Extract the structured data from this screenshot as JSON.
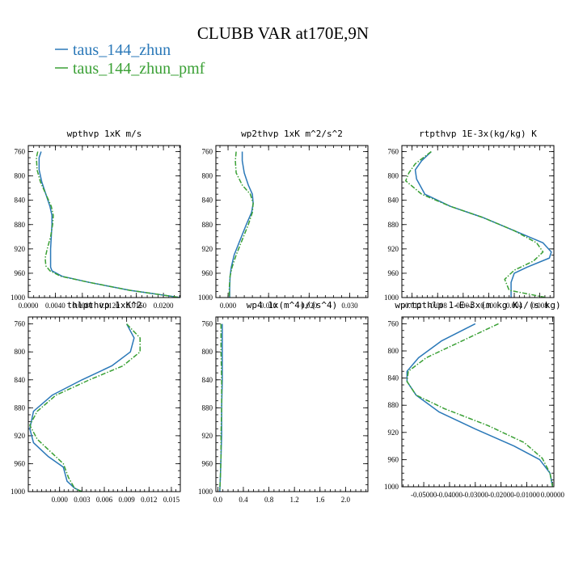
{
  "title": "CLUBB VAR at170E,9N",
  "colors": {
    "series_1": "#2a78b8",
    "series_2": "#3aa035"
  },
  "legend": [
    {
      "label": "taus_144_zhun",
      "color": "#2a78b8",
      "dash": "solid"
    },
    {
      "label": "taus_144_zhun_pmf",
      "color": "#3aa035",
      "dash": "dashdot"
    }
  ],
  "chart_data": [
    {
      "type": "line",
      "title": "wpthvp  1xK m/s",
      "xlim": [
        0.0,
        0.0225
      ],
      "ylim": [
        1000,
        750
      ],
      "xticks": [
        0.0,
        0.004,
        0.008,
        0.012,
        0.016,
        0.02
      ],
      "xtick_labels": [
        "0.0000",
        "0.0040",
        "0.0080",
        "0.0120",
        "0.0160",
        "0.0200"
      ],
      "yticks": [
        760,
        800,
        840,
        880,
        920,
        960,
        1000
      ],
      "ytick_labels": [
        "760",
        "800",
        "840",
        "880",
        "920",
        "960",
        "1000"
      ],
      "series": [
        {
          "name": "taus_144_zhun",
          "x": [
            0.0019,
            0.0016,
            0.0016,
            0.002,
            0.0026,
            0.0032,
            0.0035,
            0.0035,
            0.0034,
            0.0033,
            0.0033,
            0.0033,
            0.0035,
            0.005,
            0.009,
            0.015,
            0.0225
          ],
          "y": [
            760,
            770,
            790,
            810,
            830,
            850,
            865,
            880,
            900,
            920,
            940,
            950,
            956,
            965,
            975,
            988,
            1000
          ]
        },
        {
          "name": "taus_144_zhun_pmf",
          "x": [
            0.0014,
            0.0012,
            0.0013,
            0.0018,
            0.0026,
            0.0034,
            0.0037,
            0.0036,
            0.0033,
            0.0028,
            0.0025,
            0.0026,
            0.0032,
            0.0048,
            0.009,
            0.015,
            0.0225
          ],
          "y": [
            760,
            770,
            790,
            810,
            830,
            850,
            865,
            880,
            900,
            920,
            935,
            948,
            956,
            965,
            975,
            988,
            1000
          ]
        }
      ]
    },
    {
      "type": "line",
      "title": "wp2thvp  1xK m^2/s^2",
      "xlim": [
        -0.003,
        0.0345
      ],
      "ylim": [
        1000,
        750
      ],
      "xticks": [
        0.0,
        0.01,
        0.02,
        0.03
      ],
      "xtick_labels": [
        "0.000",
        "0.010",
        "0.020",
        "0.030"
      ],
      "yticks": [
        760,
        800,
        840,
        880,
        920,
        960,
        1000
      ],
      "ytick_labels": [
        "760",
        "800",
        "840",
        "880",
        "920",
        "960",
        "1000"
      ],
      "series": [
        {
          "name": "taus_144_zhun",
          "x": [
            0.0035,
            0.0035,
            0.004,
            0.005,
            0.006,
            0.0062,
            0.0058,
            0.0045,
            0.003,
            0.0015,
            0.0008,
            0.0005,
            0.0004,
            0.0004
          ],
          "y": [
            760,
            775,
            795,
            815,
            830,
            845,
            860,
            880,
            905,
            930,
            950,
            965,
            985,
            1000
          ]
        },
        {
          "name": "taus_144_zhun_pmf",
          "x": [
            0.002,
            0.0018,
            0.002,
            0.0035,
            0.0055,
            0.0062,
            0.006,
            0.005,
            0.0035,
            0.002,
            0.001,
            0.0005,
            0.0003,
            0.0003
          ],
          "y": [
            760,
            775,
            795,
            815,
            830,
            845,
            860,
            880,
            905,
            930,
            950,
            965,
            985,
            1000
          ]
        }
      ]
    },
    {
      "type": "line",
      "title": "rtpthvp  1E-3x(kg/kg) K",
      "xlim": [
        -0.0136,
        0.0102
      ],
      "ylim": [
        1000,
        750
      ],
      "xticks": [
        -0.012,
        -0.008,
        -0.004,
        0.0,
        0.004,
        0.008
      ],
      "xtick_labels": [
        "-0.012",
        "-0.008",
        "-0.004",
        "0.000",
        "0.004",
        "0.008"
      ],
      "yticks": [
        760,
        800,
        840,
        880,
        920,
        960,
        1000
      ],
      "ytick_labels": [
        "760",
        "800",
        "840",
        "880",
        "920",
        "960",
        "1000"
      ],
      "series": [
        {
          "name": "taus_144_zhun",
          "x": [
            -0.009,
            -0.0105,
            -0.0115,
            -0.0113,
            -0.01,
            -0.006,
            -0.001,
            0.004,
            0.0085,
            0.0098,
            0.0095,
            0.006,
            0.004,
            0.0035,
            0.0035
          ],
          "y": [
            760,
            775,
            790,
            805,
            830,
            850,
            868,
            890,
            910,
            925,
            935,
            950,
            960,
            975,
            1000
          ]
        },
        {
          "name": "taus_144_zhun_pmf",
          "x": [
            -0.009,
            -0.0115,
            -0.0125,
            -0.013,
            -0.0105,
            -0.006,
            -0.001,
            0.004,
            0.0075,
            0.0085,
            0.007,
            0.004,
            0.0025,
            0.0032,
            0.009
          ],
          "y": [
            760,
            780,
            795,
            808,
            830,
            850,
            868,
            890,
            910,
            925,
            940,
            955,
            970,
            988,
            1000
          ]
        }
      ]
    },
    {
      "type": "line",
      "title": "thlpthvp  1xK^2",
      "xlim": [
        -0.0042,
        0.0162
      ],
      "ylim": [
        1000,
        750
      ],
      "xticks": [
        0.0,
        0.003,
        0.006,
        0.009,
        0.012,
        0.015
      ],
      "xtick_labels": [
        "0.000",
        "0.003",
        "0.006",
        "0.009",
        "0.012",
        "0.015"
      ],
      "yticks": [
        760,
        800,
        840,
        880,
        920,
        960,
        1000
      ],
      "ytick_labels": [
        "760",
        "800",
        "840",
        "880",
        "920",
        "960",
        "1000"
      ],
      "series": [
        {
          "name": "taus_144_zhun",
          "x": [
            0.009,
            0.01,
            0.0095,
            0.007,
            0.003,
            -0.001,
            -0.0035,
            -0.004,
            -0.0035,
            -0.0015,
            0.0005,
            0.001,
            0.002,
            0.003
          ],
          "y": [
            760,
            780,
            800,
            820,
            840,
            862,
            885,
            910,
            930,
            950,
            965,
            985,
            995,
            1000
          ]
        },
        {
          "name": "taus_144_zhun_pmf",
          "x": [
            0.009,
            0.0108,
            0.0108,
            0.0085,
            0.004,
            -0.0005,
            -0.003,
            -0.004,
            -0.003,
            -0.001,
            0.0005,
            0.0012,
            0.002,
            0.003
          ],
          "y": [
            760,
            780,
            800,
            820,
            840,
            862,
            885,
            905,
            925,
            945,
            960,
            980,
            995,
            1000
          ]
        }
      ]
    },
    {
      "type": "line",
      "title": "wp4  1x(m^4)/(s^4)",
      "xlim": [
        -0.03,
        2.35
      ],
      "ylim": [
        1000,
        750
      ],
      "xticks": [
        0.0,
        0.4,
        0.8,
        1.2,
        1.6,
        2.0
      ],
      "xtick_labels": [
        "0.0",
        "0.4",
        "0.8",
        "1.2",
        "1.6",
        "2.0"
      ],
      "yticks": [
        760,
        800,
        840,
        880,
        920,
        960,
        1000
      ],
      "ytick_labels": [
        "760",
        "800",
        "840",
        "880",
        "920",
        "960",
        "1000"
      ],
      "series": [
        {
          "name": "taus_144_zhun",
          "x": [
            0.07,
            0.07,
            0.07,
            0.06,
            0.06,
            0.05,
            0.04,
            0.03
          ],
          "y": [
            760,
            800,
            840,
            880,
            920,
            950,
            980,
            1000
          ]
        },
        {
          "name": "taus_144_zhun_pmf",
          "x": [
            0.05,
            0.05,
            0.06,
            0.06,
            0.05,
            0.05,
            0.04,
            0.03
          ],
          "y": [
            760,
            800,
            840,
            880,
            920,
            950,
            980,
            1000
          ]
        }
      ]
    },
    {
      "type": "line",
      "title": "wprtpthlp  1-E-3x(m kg K)/(s kg)",
      "xlim": [
        -0.0585,
        0.0005
      ],
      "ylim": [
        1000,
        750
      ],
      "xticks": [
        -0.05,
        -0.04,
        -0.03,
        -0.02,
        -0.01,
        0.0
      ],
      "xtick_labels": [
        "-0.05000",
        "-0.04000",
        "-0.03000",
        "-0.02000",
        "-0.01000",
        "0.00000"
      ],
      "yticks": [
        760,
        800,
        840,
        880,
        920,
        960,
        1000
      ],
      "ytick_labels": [
        "760",
        "800",
        "840",
        "880",
        "920",
        "960",
        "1000"
      ],
      "series": [
        {
          "name": "taus_144_zhun",
          "x": [
            -0.03,
            -0.043,
            -0.052,
            -0.0565,
            -0.0565,
            -0.053,
            -0.044,
            -0.03,
            -0.015,
            -0.005,
            -0.001,
            0.0
          ],
          "y": [
            760,
            785,
            810,
            830,
            845,
            865,
            890,
            915,
            940,
            960,
            980,
            1000
          ]
        },
        {
          "name": "taus_144_zhun_pmf",
          "x": [
            -0.021,
            -0.035,
            -0.049,
            -0.056,
            -0.0565,
            -0.053,
            -0.042,
            -0.025,
            -0.011,
            -0.004,
            -0.001,
            0.0
          ],
          "y": [
            760,
            785,
            810,
            830,
            845,
            865,
            885,
            910,
            935,
            958,
            980,
            1000
          ]
        }
      ]
    }
  ]
}
